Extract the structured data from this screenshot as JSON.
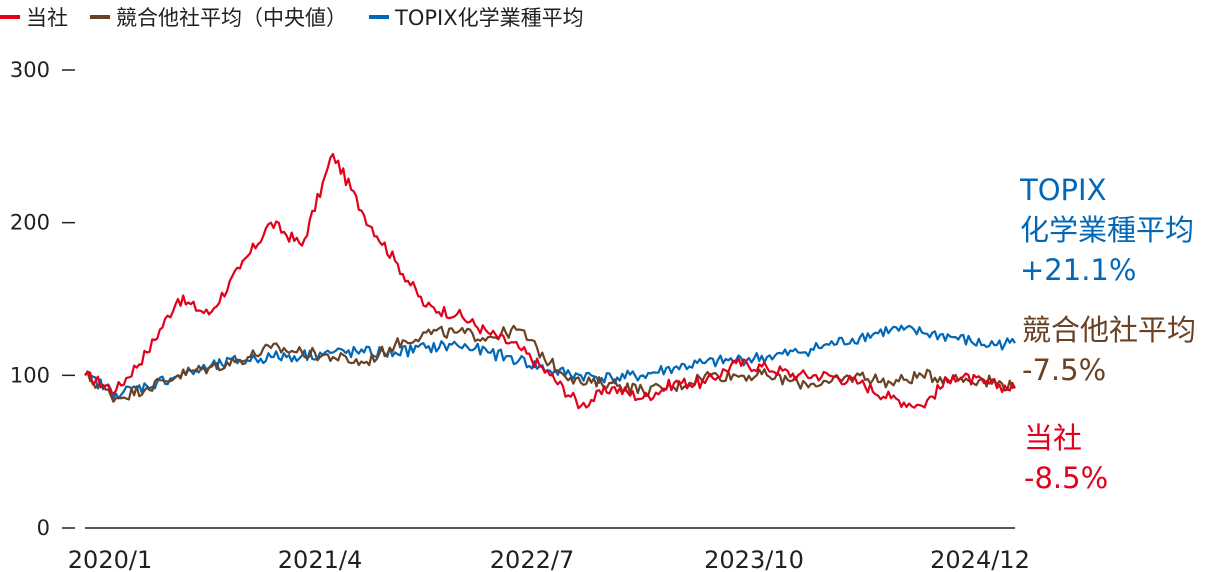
{
  "chart_data": {
    "type": "line",
    "title": "",
    "xlabel": "",
    "ylabel": "",
    "ylim": [
      0,
      300
    ],
    "yticks": [
      0,
      100,
      200,
      300
    ],
    "x_tick_labels": [
      "2020/1",
      "2021/4",
      "2022/7",
      "2023/10",
      "2024/12"
    ],
    "x": [
      "2020/1",
      "2020/3",
      "2020/5",
      "2020/7",
      "2020/9",
      "2020/11",
      "2021/1",
      "2021/3",
      "2021/5",
      "2021/7",
      "2021/9",
      "2021/11",
      "2022/1",
      "2022/3",
      "2022/5",
      "2022/7",
      "2022/9",
      "2022/11",
      "2023/1",
      "2023/3",
      "2023/5",
      "2023/7",
      "2023/9",
      "2023/11",
      "2024/1",
      "2024/3",
      "2024/5",
      "2024/7",
      "2024/9",
      "2024/11",
      "2024/12"
    ],
    "legend_position": "top-left",
    "grid": false,
    "series": [
      {
        "name": "当社",
        "color": "#e2001a",
        "values": [
          100,
          90,
          115,
          150,
          140,
          170,
          200,
          185,
          245,
          205,
          175,
          145,
          140,
          128,
          118,
          100,
          80,
          92,
          85,
          95,
          95,
          108,
          105,
          100,
          100,
          95,
          85,
          80,
          100,
          95,
          91.5
        ],
        "end_label": "当社",
        "end_value": "-8.5%"
      },
      {
        "name": "競合他社平均（中央値）",
        "color": "#6b4124",
        "values": [
          100,
          85,
          92,
          100,
          105,
          110,
          118,
          115,
          112,
          108,
          120,
          128,
          128,
          125,
          130,
          108,
          95,
          95,
          90,
          92,
          100,
          100,
          100,
          95,
          95,
          100,
          95,
          100,
          98,
          97,
          92.5
        ],
        "end_label": "競合他社平均",
        "end_value": "-7.5%"
      },
      {
        "name": "TOPIX化学業種平均",
        "color": "#0068b7",
        "values": [
          100,
          88,
          93,
          100,
          105,
          110,
          112,
          113,
          115,
          115,
          115,
          118,
          120,
          115,
          110,
          103,
          100,
          98,
          100,
          105,
          108,
          110,
          112,
          115,
          120,
          125,
          130,
          128,
          125,
          120,
          121.1
        ],
        "end_label": "TOPIX\n化学業種平均",
        "end_value": "+21.1%"
      }
    ]
  }
}
